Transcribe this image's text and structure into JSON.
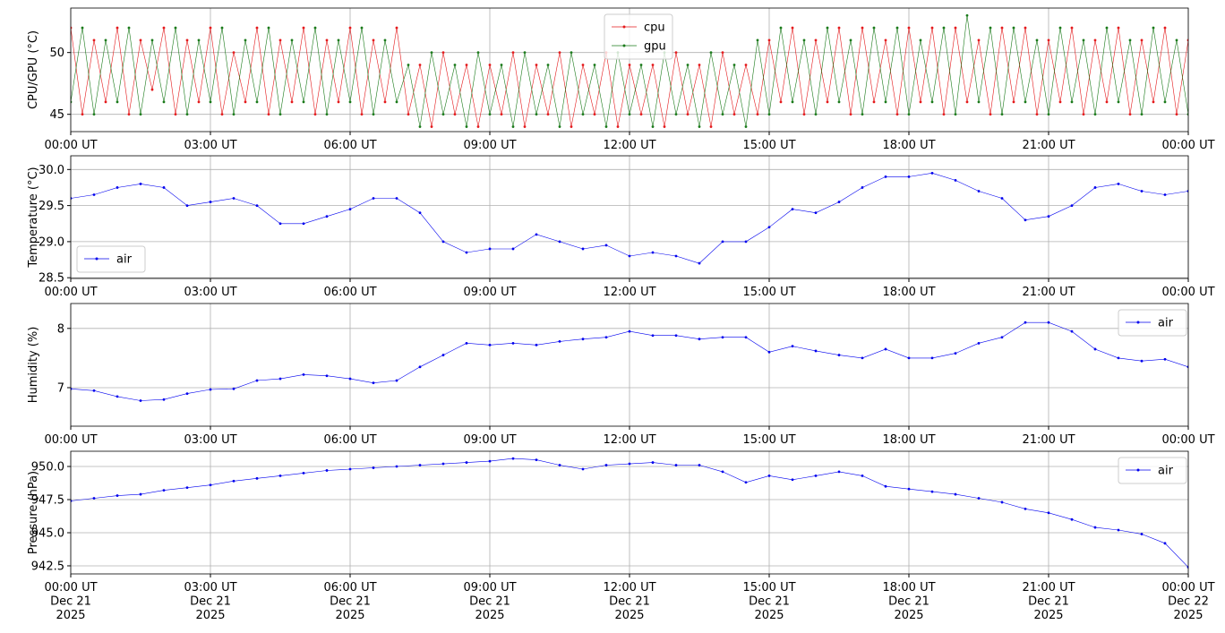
{
  "chart_data": [
    {
      "type": "line",
      "ylabel": "CPU/GPU (°C)",
      "legend": "upper center",
      "grid": true,
      "x": [
        0,
        0.25,
        0.5,
        0.75,
        1,
        1.25,
        1.5,
        1.75,
        2,
        2.25,
        2.5,
        2.75,
        3,
        3.25,
        3.5,
        3.75,
        4,
        4.25,
        4.5,
        4.75,
        5,
        5.25,
        5.5,
        5.75,
        6,
        6.25,
        6.5,
        6.75,
        7,
        7.25,
        7.5,
        7.75,
        8,
        8.25,
        8.5,
        8.75,
        9,
        9.25,
        9.5,
        9.75,
        10,
        10.25,
        10.5,
        10.75,
        11,
        11.25,
        11.5,
        11.75,
        12,
        12.25,
        12.5,
        12.75,
        13,
        13.25,
        13.5,
        13.75,
        14,
        14.25,
        14.5,
        14.75,
        15,
        15.25,
        15.5,
        15.75,
        16,
        16.25,
        16.5,
        16.75,
        17,
        17.25,
        17.5,
        17.75,
        18,
        18.25,
        18.5,
        18.75,
        19,
        19.25,
        19.5,
        19.75,
        20,
        20.25,
        20.5,
        20.75,
        21,
        21.25,
        21.5,
        21.75,
        22,
        22.25,
        22.5,
        22.75,
        23,
        23.25,
        23.5,
        23.75,
        24
      ],
      "series": [
        {
          "name": "cpu",
          "color": "#e41a1c",
          "values": [
            52,
            45,
            51,
            46,
            52,
            45,
            51,
            47,
            52,
            45,
            51,
            46,
            52,
            45,
            50,
            46,
            52,
            45,
            51,
            46,
            52,
            45,
            51,
            46,
            52,
            45,
            51,
            46,
            52,
            45,
            49,
            44,
            50,
            45,
            49,
            44,
            49,
            45,
            50,
            44,
            49,
            45,
            50,
            44,
            49,
            45,
            50,
            44,
            49,
            45,
            49,
            44,
            50,
            45,
            49,
            44,
            50,
            45,
            49,
            45,
            51,
            46,
            52,
            45,
            51,
            46,
            52,
            45,
            52,
            46,
            51,
            45,
            52,
            46,
            52,
            45,
            52,
            46,
            51,
            45,
            52,
            46,
            52,
            45,
            51,
            46,
            52,
            45,
            51,
            46,
            52,
            45,
            51,
            46,
            52,
            45,
            51
          ]
        },
        {
          "name": "gpu",
          "color": "#1a7a1a",
          "values": [
            46,
            52,
            45,
            51,
            46,
            52,
            45,
            51,
            46,
            52,
            45,
            51,
            46,
            52,
            45,
            51,
            46,
            52,
            45,
            51,
            46,
            52,
            45,
            51,
            46,
            52,
            45,
            51,
            46,
            49,
            44,
            50,
            45,
            49,
            44,
            50,
            45,
            49,
            44,
            50,
            45,
            49,
            44,
            50,
            45,
            49,
            44,
            50,
            45,
            49,
            44,
            50,
            45,
            49,
            44,
            50,
            45,
            49,
            44,
            51,
            45,
            52,
            46,
            51,
            45,
            52,
            46,
            51,
            45,
            52,
            46,
            52,
            45,
            51,
            46,
            52,
            45,
            53,
            46,
            52,
            45,
            52,
            46,
            51,
            45,
            52,
            46,
            51,
            45,
            52,
            46,
            51,
            45,
            52,
            46,
            51,
            45
          ]
        }
      ],
      "xlim": [
        0,
        24
      ],
      "xticks": [
        {
          "value": 0,
          "label": "00:00 UT"
        },
        {
          "value": 3,
          "label": "03:00 UT"
        },
        {
          "value": 6,
          "label": "06:00 UT"
        },
        {
          "value": 9,
          "label": "09:00 UT"
        },
        {
          "value": 12,
          "label": "12:00 UT"
        },
        {
          "value": 15,
          "label": "15:00 UT"
        },
        {
          "value": 18,
          "label": "18:00 UT"
        },
        {
          "value": 21,
          "label": "21:00 UT"
        },
        {
          "value": 24,
          "label": "00:00 UT"
        }
      ],
      "ylim": [
        43.6,
        53.6
      ],
      "yticks": [
        45,
        50
      ]
    },
    {
      "type": "line",
      "ylabel": "Temperature (°C)",
      "legend": "lower left",
      "grid": true,
      "x": [
        0,
        0.5,
        1,
        1.5,
        2,
        2.5,
        3,
        3.5,
        4,
        4.5,
        5,
        5.5,
        6,
        6.5,
        7,
        7.5,
        8,
        8.5,
        9,
        9.5,
        10,
        10.5,
        11,
        11.5,
        12,
        12.5,
        13,
        13.5,
        14,
        14.5,
        15,
        15.5,
        16,
        16.5,
        17,
        17.5,
        18,
        18.5,
        19,
        19.5,
        20,
        20.5,
        21,
        21.5,
        22,
        22.5,
        23,
        23.5,
        24
      ],
      "series": [
        {
          "name": "air",
          "color": "#0000ee",
          "values": [
            29.6,
            29.65,
            29.75,
            29.8,
            29.75,
            29.5,
            29.55,
            29.6,
            29.5,
            29.25,
            29.25,
            29.35,
            29.45,
            29.6,
            29.6,
            29.4,
            29.0,
            28.85,
            28.9,
            28.9,
            29.1,
            29.0,
            28.9,
            28.95,
            28.8,
            28.85,
            28.8,
            28.7,
            29.0,
            29.0,
            29.2,
            29.45,
            29.4,
            29.55,
            29.75,
            29.9,
            29.9,
            29.95,
            29.85,
            29.7,
            29.6,
            29.3,
            29.35,
            29.5,
            29.75,
            29.8,
            29.7,
            29.65,
            29.7
          ]
        }
      ],
      "xlim": [
        0,
        24
      ],
      "xticks": [
        {
          "value": 0,
          "label": "00:00 UT"
        },
        {
          "value": 3,
          "label": "03:00 UT"
        },
        {
          "value": 6,
          "label": "06:00 UT"
        },
        {
          "value": 9,
          "label": "09:00 UT"
        },
        {
          "value": 12,
          "label": "12:00 UT"
        },
        {
          "value": 15,
          "label": "15:00 UT"
        },
        {
          "value": 18,
          "label": "18:00 UT"
        },
        {
          "value": 21,
          "label": "21:00 UT"
        },
        {
          "value": 24,
          "label": "00:00 UT"
        }
      ],
      "ylim": [
        28.49,
        30.19
      ],
      "yticks": [
        28.5,
        {
          "value": 29,
          "label": "29.0"
        },
        29.5,
        {
          "value": 30,
          "label": "30.0"
        }
      ]
    },
    {
      "type": "line",
      "ylabel": "Humidity (%)",
      "legend": "upper right",
      "grid": true,
      "x": [
        0,
        0.5,
        1,
        1.5,
        2,
        2.5,
        3,
        3.5,
        4,
        4.5,
        5,
        5.5,
        6,
        6.5,
        7,
        7.5,
        8,
        8.5,
        9,
        9.5,
        10,
        10.5,
        11,
        11.5,
        12,
        12.5,
        13,
        13.5,
        14,
        14.5,
        15,
        15.5,
        16,
        16.5,
        17,
        17.5,
        18,
        18.5,
        19,
        19.5,
        20,
        20.5,
        21,
        21.5,
        22,
        22.5,
        23,
        23.5,
        24
      ],
      "series": [
        {
          "name": "air",
          "color": "#0000ee",
          "values": [
            6.98,
            6.95,
            6.85,
            6.78,
            6.8,
            6.9,
            6.97,
            6.98,
            7.12,
            7.15,
            7.22,
            7.2,
            7.15,
            7.08,
            7.12,
            7.35,
            7.55,
            7.75,
            7.72,
            7.75,
            7.72,
            7.78,
            7.82,
            7.85,
            7.95,
            7.88,
            7.88,
            7.82,
            7.85,
            7.85,
            7.6,
            7.7,
            7.62,
            7.55,
            7.5,
            7.65,
            7.5,
            7.5,
            7.58,
            7.75,
            7.85,
            8.1,
            8.1,
            7.95,
            7.65,
            7.5,
            7.45,
            7.48,
            7.35
          ]
        }
      ],
      "xlim": [
        0,
        24
      ],
      "xticks": [
        {
          "value": 0,
          "label": "00:00 UT"
        },
        {
          "value": 3,
          "label": "03:00 UT"
        },
        {
          "value": 6,
          "label": "06:00 UT"
        },
        {
          "value": 9,
          "label": "09:00 UT"
        },
        {
          "value": 12,
          "label": "12:00 UT"
        },
        {
          "value": 15,
          "label": "15:00 UT"
        },
        {
          "value": 18,
          "label": "18:00 UT"
        },
        {
          "value": 21,
          "label": "21:00 UT"
        },
        {
          "value": 24,
          "label": "00:00 UT"
        }
      ],
      "ylim": [
        6.35,
        8.42
      ],
      "yticks": [
        7,
        8
      ]
    },
    {
      "type": "line",
      "ylabel": "Pressure (hPa)",
      "legend": "upper right",
      "grid": true,
      "x": [
        0,
        0.5,
        1,
        1.5,
        2,
        2.5,
        3,
        3.5,
        4,
        4.5,
        5,
        5.5,
        6,
        6.5,
        7,
        7.5,
        8,
        8.5,
        9,
        9.5,
        10,
        10.5,
        11,
        11.5,
        12,
        12.5,
        13,
        13.5,
        14,
        14.5,
        15,
        15.5,
        16,
        16.5,
        17,
        17.5,
        18,
        18.5,
        19,
        19.5,
        20,
        20.5,
        21,
        21.5,
        22,
        22.5,
        23,
        23.5,
        24
      ],
      "series": [
        {
          "name": "air",
          "color": "#0000ee",
          "values": [
            947.4,
            947.6,
            947.8,
            947.9,
            948.2,
            948.4,
            948.6,
            948.9,
            949.1,
            949.3,
            949.5,
            949.7,
            949.8,
            949.9,
            950.0,
            950.1,
            950.2,
            950.3,
            950.4,
            950.6,
            950.5,
            950.1,
            949.8,
            950.1,
            950.2,
            950.3,
            950.1,
            950.1,
            949.6,
            948.8,
            949.3,
            949.0,
            949.3,
            949.6,
            949.3,
            948.5,
            948.3,
            948.1,
            947.9,
            947.6,
            947.3,
            946.8,
            946.5,
            946.0,
            945.4,
            945.2,
            944.9,
            944.2,
            942.4
          ]
        }
      ],
      "xlim": [
        0,
        24
      ],
      "xticks": [
        {
          "value": 0,
          "label": "00:00 UT\nDec 21\n2025"
        },
        {
          "value": 3,
          "label": "03:00 UT\nDec 21\n2025"
        },
        {
          "value": 6,
          "label": "06:00 UT\nDec 21\n2025"
        },
        {
          "value": 9,
          "label": "09:00 UT\nDec 21\n2025"
        },
        {
          "value": 12,
          "label": "12:00 UT\nDec 21\n2025"
        },
        {
          "value": 15,
          "label": "15:00 UT\nDec 21\n2025"
        },
        {
          "value": 18,
          "label": "18:00 UT\nDec 21\n2025"
        },
        {
          "value": 21,
          "label": "21:00 UT\nDec 21\n2025"
        },
        {
          "value": 24,
          "label": "00:00 UT\nDec 22\n2025"
        }
      ],
      "ylim": [
        941.89,
        951.15
      ],
      "yticks": [
        {
          "value": 942.5,
          "label": "942.5"
        },
        {
          "value": 945,
          "label": "945.0"
        },
        {
          "value": 947.5,
          "label": "947.5"
        },
        {
          "value": 950,
          "label": "950.0"
        }
      ]
    }
  ]
}
